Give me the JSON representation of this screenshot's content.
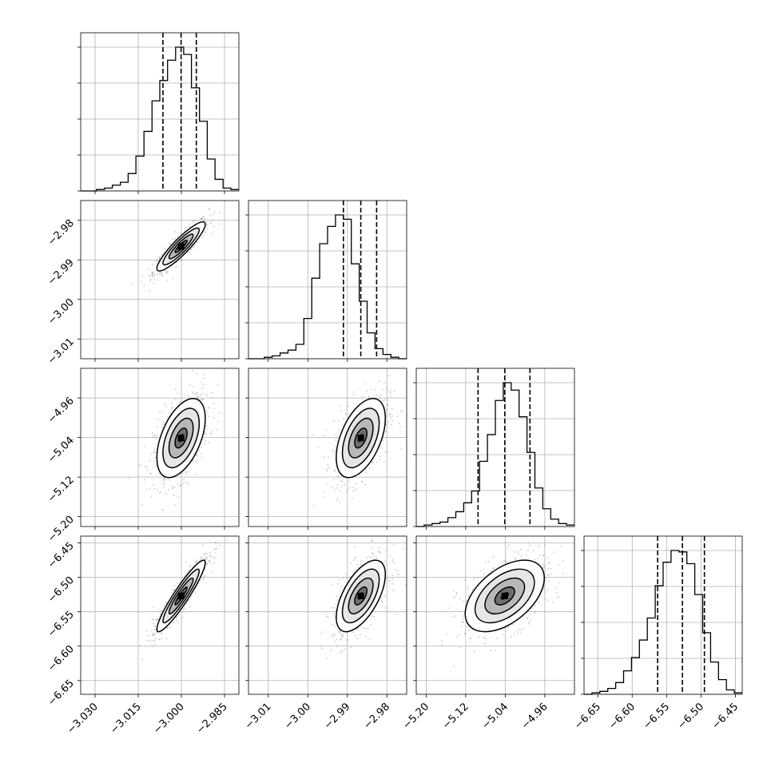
{
  "chart_data": [
    {
      "type": "histogram",
      "panel": "hist-x1",
      "xlim": [
        -3.035,
        -2.98
      ],
      "x_ticks": [
        -3.03,
        -3.015,
        -3.0,
        -2.985
      ],
      "x_tick_labels": [
        "−3.030",
        "−3.015",
        "−3.000",
        "−2.985"
      ],
      "bin_edges": [
        -3.035,
        -3.0322,
        -3.0295,
        -3.0267,
        -3.024,
        -3.0212,
        -3.0185,
        -3.0158,
        -3.013,
        -3.0102,
        -3.0075,
        -3.0048,
        -3.002,
        -2.9992,
        -2.9965,
        -2.9937,
        -2.991,
        -2.9883,
        -2.9855,
        -2.9828,
        -2.98
      ],
      "counts": [
        0,
        0,
        0.01,
        0.02,
        0.04,
        0.06,
        0.12,
        0.24,
        0.41,
        0.62,
        0.76,
        0.9,
        0.99,
        0.94,
        0.71,
        0.48,
        0.22,
        0.08,
        0.02,
        0.01
      ],
      "quantile_lines": [
        -3.0064,
        -3.0001,
        -2.9948
      ]
    },
    {
      "type": "histogram",
      "panel": "hist-x2",
      "xlim": [
        -3.015,
        -2.975
      ],
      "x_ticks": [
        -3.01,
        -3.0,
        -2.99,
        -2.98
      ],
      "x_tick_labels": [
        "−3.01",
        "−3.00",
        "−2.99",
        "−2.98"
      ],
      "bin_edges": [
        -3.015,
        -3.013,
        -3.011,
        -3.009,
        -3.007,
        -3.005,
        -3.003,
        -3.001,
        -2.999,
        -2.997,
        -2.995,
        -2.993,
        -2.991,
        -2.989,
        -2.987,
        -2.985,
        -2.983,
        -2.981,
        -2.979,
        -2.977,
        -2.975
      ],
      "counts": [
        0,
        0,
        0.01,
        0.02,
        0.04,
        0.06,
        0.1,
        0.28,
        0.56,
        0.8,
        0.92,
        1.0,
        0.97,
        0.66,
        0.4,
        0.18,
        0.07,
        0.03,
        0.01,
        0
      ],
      "quantile_lines": [
        -2.991,
        -2.9866,
        -2.9826
      ]
    },
    {
      "type": "histogram",
      "panel": "hist-x3",
      "xlim": [
        -5.22,
        -4.9
      ],
      "x_ticks": [
        -5.2,
        -5.12,
        -5.04,
        -4.96
      ],
      "x_tick_labels": [
        "−5.20",
        "−5.12",
        "−5.04",
        "−4.96"
      ],
      "bin_edges": [
        -5.22,
        -5.204,
        -5.188,
        -5.172,
        -5.156,
        -5.14,
        -5.124,
        -5.108,
        -5.092,
        -5.076,
        -5.06,
        -5.044,
        -5.028,
        -5.012,
        -4.996,
        -4.98,
        -4.964,
        -4.948,
        -4.932,
        -4.916,
        -4.9
      ],
      "counts": [
        0,
        0.01,
        0.02,
        0.03,
        0.06,
        0.1,
        0.16,
        0.24,
        0.44,
        0.62,
        0.85,
        0.97,
        0.92,
        0.74,
        0.5,
        0.26,
        0.12,
        0.05,
        0.02,
        0.01
      ],
      "quantile_lines": [
        -5.095,
        -5.041,
        -4.99
      ]
    },
    {
      "type": "histogram",
      "panel": "hist-x4",
      "xlim": [
        -6.67,
        -6.44
      ],
      "x_ticks": [
        -6.65,
        -6.6,
        -6.55,
        -6.5,
        -6.45
      ],
      "x_tick_labels": [
        "−6.65",
        "−6.60",
        "−6.55",
        "−6.50",
        "−6.45"
      ],
      "bin_edges": [
        -6.67,
        -6.6585,
        -6.647,
        -6.6355,
        -6.624,
        -6.6125,
        -6.601,
        -6.5895,
        -6.578,
        -6.5665,
        -6.555,
        -6.5435,
        -6.532,
        -6.5205,
        -6.509,
        -6.4975,
        -6.486,
        -6.4745,
        -6.463,
        -6.4515,
        -6.44
      ],
      "counts": [
        0,
        0.01,
        0.02,
        0.04,
        0.08,
        0.16,
        0.25,
        0.37,
        0.52,
        0.74,
        0.9,
        0.98,
        0.97,
        0.89,
        0.68,
        0.42,
        0.22,
        0.1,
        0.03,
        0.01
      ],
      "quantile_lines": [
        -6.563,
        -6.527,
        -6.495
      ]
    },
    {
      "type": "heatmap",
      "panel": "2d-x1-x2",
      "xlim": [
        -3.035,
        -2.98
      ],
      "ylim": [
        -3.015,
        -2.975
      ],
      "y_ticks": [
        -2.98,
        -2.99,
        -3.0,
        -3.01
      ],
      "y_tick_labels": [
        "−2.98",
        "−2.99",
        "−3.00",
        "−3.01"
      ],
      "center": [
        -3.0001,
        -2.9866
      ],
      "sigma": [
        0.0042,
        0.0031
      ],
      "correlation": 0.9
    },
    {
      "type": "heatmap",
      "panel": "2d-x1-x3",
      "xlim": [
        -3.035,
        -2.98
      ],
      "ylim": [
        -5.22,
        -4.9
      ],
      "y_ticks": [
        -4.96,
        -5.04,
        -5.12,
        -5.2
      ],
      "y_tick_labels": [
        "−4.96",
        "−5.04",
        "−5.12",
        "−5.20"
      ],
      "center": [
        -3.0001,
        -5.041
      ],
      "sigma": [
        0.0042,
        0.04
      ],
      "correlation": 0.5
    },
    {
      "type": "heatmap",
      "panel": "2d-x2-x3",
      "xlim": [
        -3.015,
        -2.975
      ],
      "ylim": [
        -5.22,
        -4.9
      ],
      "center": [
        -2.9866,
        -5.041
      ],
      "sigma": [
        0.0031,
        0.04
      ],
      "correlation": 0.5
    },
    {
      "type": "heatmap",
      "panel": "2d-x1-x4",
      "xlim": [
        -3.035,
        -2.98
      ],
      "ylim": [
        -6.67,
        -6.44
      ],
      "y_ticks": [
        -6.45,
        -6.5,
        -6.55,
        -6.6,
        -6.65
      ],
      "y_tick_labels": [
        "−6.45",
        "−6.50",
        "−6.55",
        "−6.60",
        "−6.65"
      ],
      "center": [
        -3.0001,
        -6.527
      ],
      "sigma": [
        0.0042,
        0.026
      ],
      "correlation": 0.93
    },
    {
      "type": "heatmap",
      "panel": "2d-x2-x4",
      "xlim": [
        -3.015,
        -2.975
      ],
      "ylim": [
        -6.67,
        -6.44
      ],
      "center": [
        -2.9866,
        -6.527
      ],
      "sigma": [
        0.0031,
        0.026
      ],
      "correlation": 0.6
    },
    {
      "type": "heatmap",
      "panel": "2d-x3-x4",
      "xlim": [
        -5.22,
        -4.9
      ],
      "ylim": [
        -6.67,
        -6.44
      ],
      "center": [
        -5.041,
        -6.527
      ],
      "sigma": [
        0.04,
        0.026
      ],
      "correlation": 0.5
    }
  ],
  "style": {
    "line_color": "#000000",
    "grid_color": "#b0b0b0",
    "scatter_color": "#8a8a8a"
  }
}
